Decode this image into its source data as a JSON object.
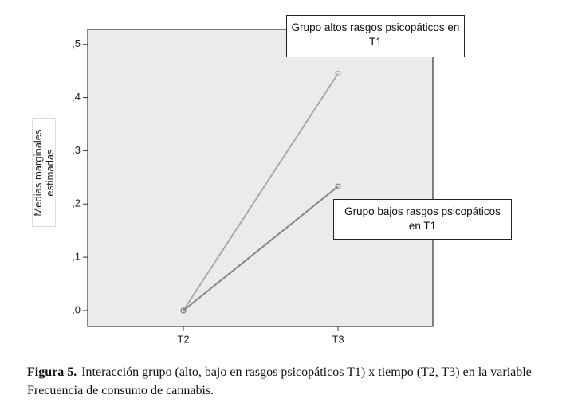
{
  "chart_data": {
    "type": "line",
    "y_label": "Medias marginales estimadas",
    "categories": [
      "T2",
      "T3"
    ],
    "series": [
      {
        "name": "Grupo altos rasgos psicopáticos en T1",
        "color": "#aaaaaa",
        "values": [
          0.0,
          0.445
        ]
      },
      {
        "name": "Grupo bajos rasgos psicopáticos en T1",
        "color": "#888888",
        "values": [
          0.0,
          0.233
        ]
      }
    ],
    "ylim": [
      -0.03,
      0.528
    ],
    "yticks": [
      {
        "value": 0,
        "label": ",0"
      },
      {
        "value": 0.1,
        "label": ",1"
      },
      {
        "value": 0.2,
        "label": ",2"
      },
      {
        "value": 0.3,
        "label": ",3"
      },
      {
        "value": 0.4,
        "label": ",4"
      },
      {
        "value": 0.5,
        "label": ",5"
      }
    ],
    "figure_label": "Figura 5.",
    "caption": "Interacción grupo (alto, bajo en rasgos psicopáticos T1) x tiempo (T2, T3) en la variable Frecuencia de consumo de cannabis."
  }
}
